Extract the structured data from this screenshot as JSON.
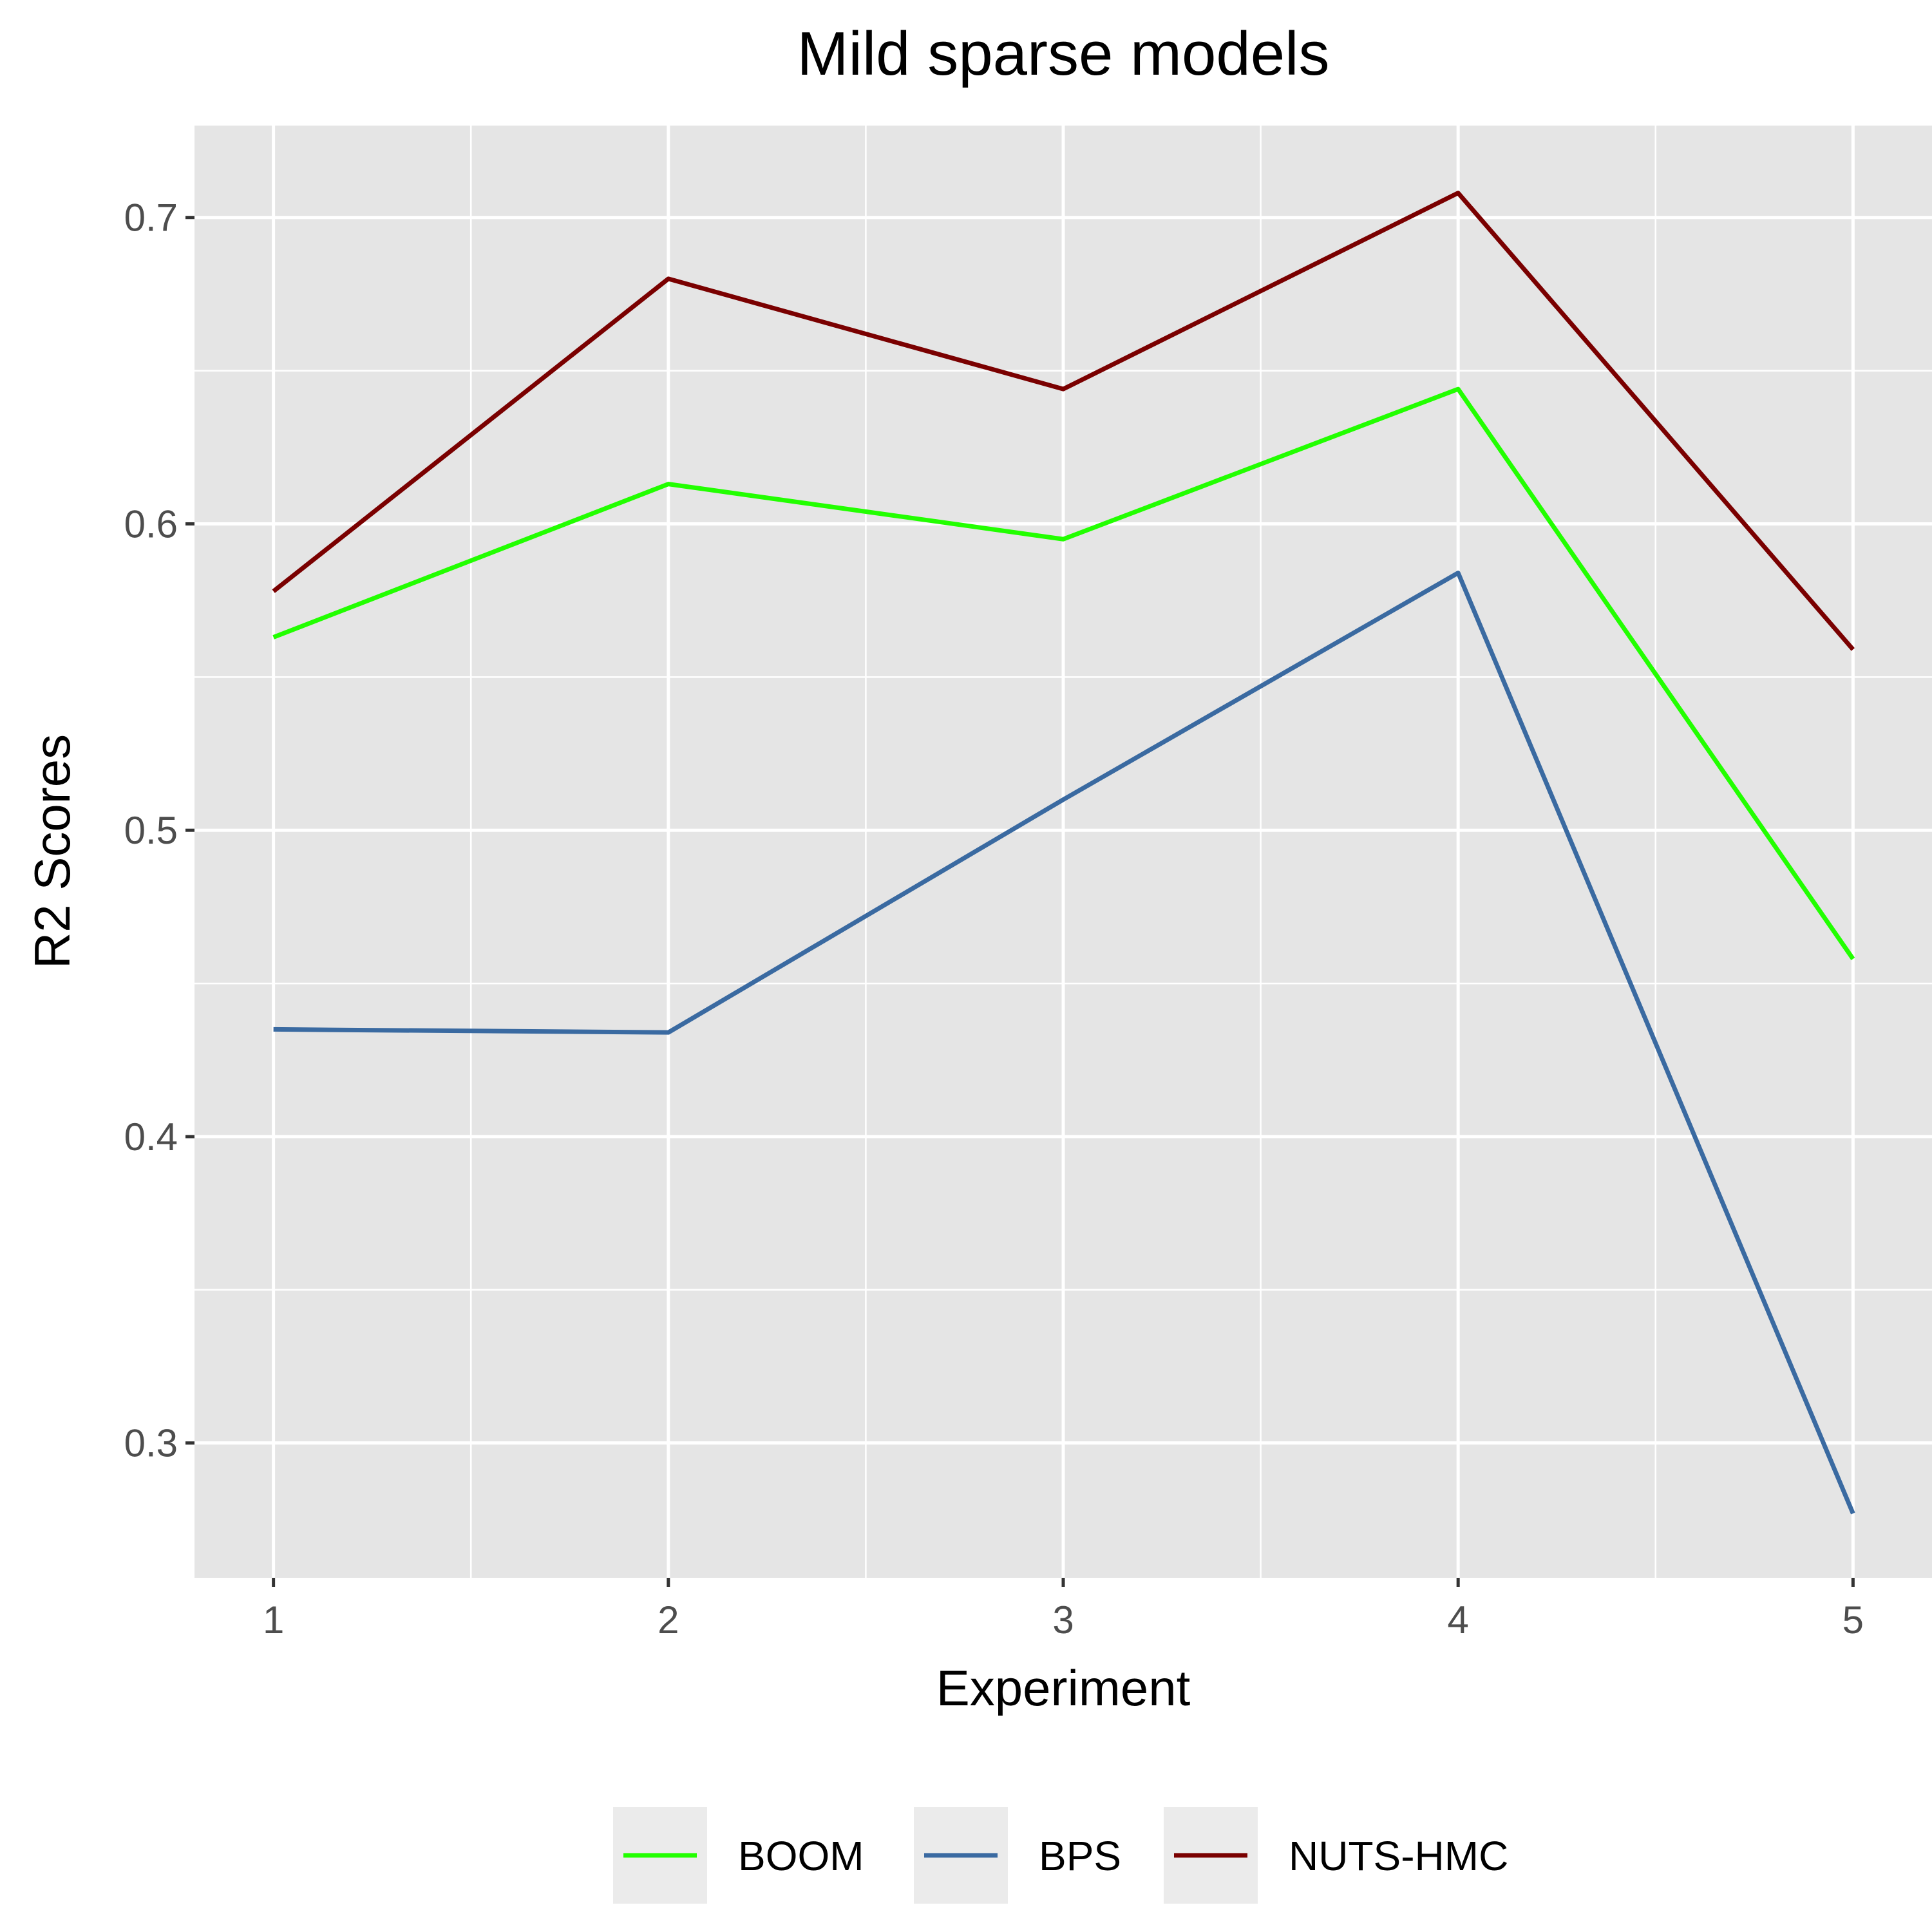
{
  "chart_data": {
    "type": "line",
    "title": "Mild sparse models",
    "xlabel": "Experiment",
    "ylabel": "R2 Scores",
    "x": [
      1,
      2,
      3,
      4,
      5
    ],
    "xticks": [
      "1",
      "2",
      "3",
      "4",
      "5"
    ],
    "yticks": [
      0.3,
      0.4,
      0.5,
      0.6,
      0.7
    ],
    "ytick_labels": [
      "0.3",
      "0.4",
      "0.5",
      "0.6",
      "0.7"
    ],
    "xlim": [
      0.8,
      5.2
    ],
    "ylim": [
      0.256,
      0.73
    ],
    "grid": true,
    "legend_position": "bottom",
    "background": "#e5e5e5",
    "series": [
      {
        "name": "BOOM",
        "color": "#22ff00",
        "values": [
          0.563,
          0.613,
          0.595,
          0.644,
          0.458
        ]
      },
      {
        "name": "BPS",
        "color": "#3a6aa1",
        "values": [
          0.435,
          0.434,
          0.51,
          0.584,
          0.277
        ]
      },
      {
        "name": "NUTS-HMC",
        "color": "#7a0000",
        "values": [
          0.578,
          0.68,
          0.644,
          0.708,
          0.559
        ]
      }
    ]
  }
}
